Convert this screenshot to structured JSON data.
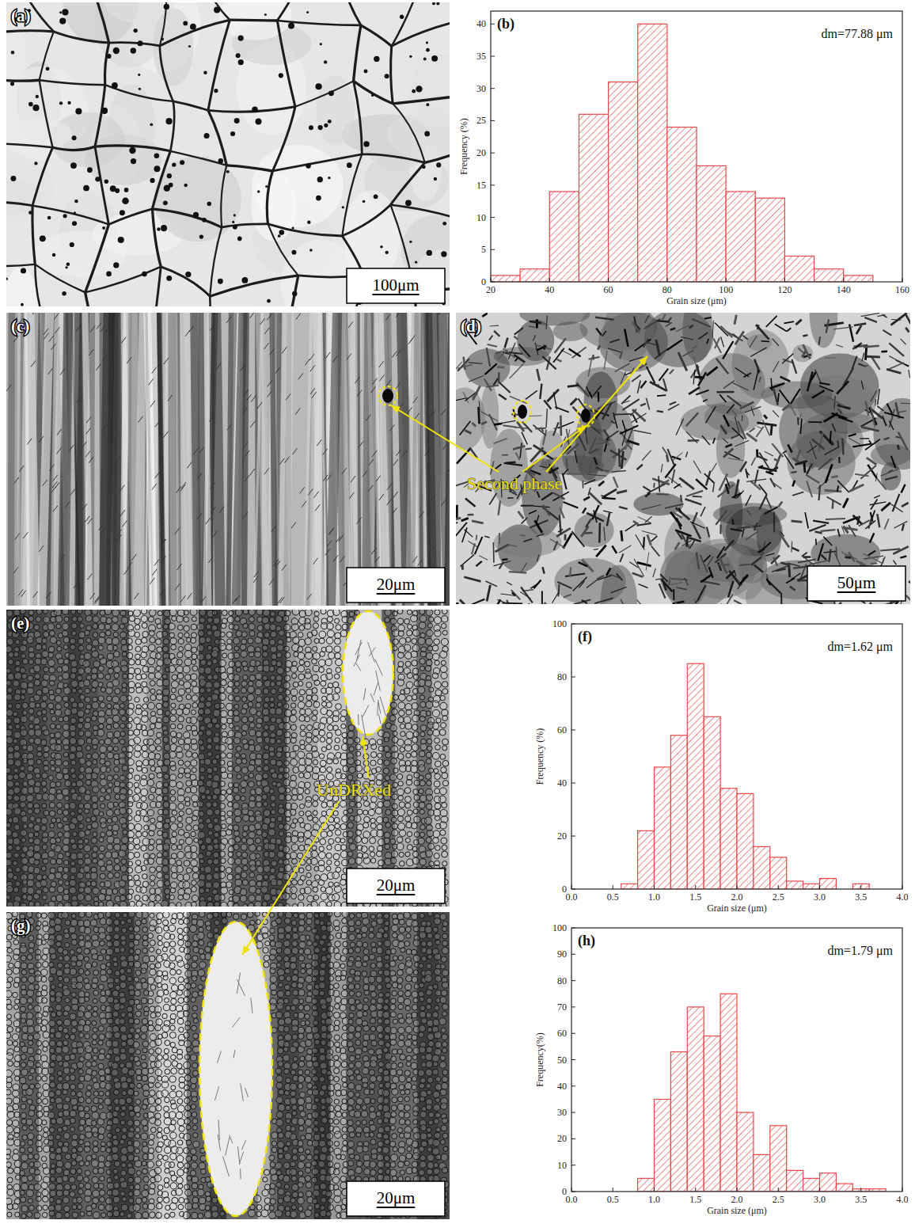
{
  "chart_data": [
    {
      "type": "histogram",
      "title": "(b)",
      "annotations": [
        "dm=77.88 μm"
      ],
      "x_label": "Grain size (μm)",
      "y_label": "Frequency (%)",
      "bins": [
        20,
        30,
        40,
        50,
        60,
        70,
        80,
        90,
        100,
        110,
        120,
        130,
        140,
        150
      ],
      "values": [
        1,
        2,
        14,
        26,
        31,
        40,
        24,
        18,
        14,
        13,
        4,
        2,
        1
      ],
      "color": "#e8474a",
      "xlim": [
        20,
        160
      ],
      "ylim": [
        0,
        42
      ],
      "xticks": [
        20,
        40,
        60,
        80,
        100,
        120,
        140,
        160
      ],
      "yticks": [
        0,
        5,
        10,
        15,
        20,
        25,
        30,
        35,
        40
      ]
    },
    {
      "type": "histogram",
      "title": "(f)",
      "annotations": [
        "dm=1.62 μm"
      ],
      "x_label": "Grain size (μm)",
      "y_label": "Frequency (%)",
      "bins": [
        0.6,
        0.8,
        1.0,
        1.2,
        1.4,
        1.6,
        1.8,
        2.0,
        2.2,
        2.4,
        2.6,
        2.8,
        3.0,
        3.2,
        3.4,
        3.6
      ],
      "values": [
        2,
        22,
        46,
        58,
        85,
        65,
        38,
        36,
        16,
        12,
        3,
        2,
        4,
        0,
        2
      ],
      "color": "#e8474a",
      "xlim": [
        0,
        4
      ],
      "ylim": [
        0,
        100
      ],
      "xticks": [
        {
          "value": 0,
          "label": "0.0"
        },
        0.5,
        {
          "value": 1,
          "label": "1.0"
        },
        1.5,
        {
          "value": 2,
          "label": "2.0"
        },
        2.5,
        {
          "value": 3,
          "label": "3.0"
        },
        3.5,
        {
          "value": 4,
          "label": "4.0"
        }
      ],
      "yticks": [
        0,
        20,
        40,
        60,
        80,
        100
      ]
    },
    {
      "type": "histogram",
      "title": "(h)",
      "annotations": [
        "dm=1.79 μm"
      ],
      "x_label": "Grain size (μm)",
      "y_label": "Frequency(%)",
      "bins": [
        0.8,
        1.0,
        1.2,
        1.4,
        1.6,
        1.8,
        2.0,
        2.2,
        2.4,
        2.6,
        2.8,
        3.0,
        3.2,
        3.4,
        3.6,
        3.8
      ],
      "values": [
        5,
        35,
        53,
        70,
        59,
        75,
        30,
        14,
        25,
        8,
        5,
        7,
        3,
        1,
        1
      ],
      "color": "#e8474a",
      "xlim": [
        0,
        4
      ],
      "ylim": [
        0,
        100
      ],
      "xticks": [
        {
          "value": 0,
          "label": "0.0"
        },
        0.5,
        {
          "value": 1,
          "label": "1.0"
        },
        1.5,
        {
          "value": 2,
          "label": "2.0"
        },
        2.5,
        {
          "value": 3,
          "label": "3.0"
        },
        3.5,
        {
          "value": 4,
          "label": "4.0"
        }
      ],
      "yticks": [
        0,
        10,
        20,
        30,
        40,
        50,
        60,
        70,
        80,
        90,
        100
      ]
    }
  ],
  "micrographs": [
    {
      "label": "(a)",
      "scale_bar": "100μm"
    },
    {
      "label": "(c)",
      "scale_bar": "20μm"
    },
    {
      "label": "(d)",
      "scale_bar": "50μm"
    },
    {
      "label": "(e)",
      "scale_bar": "20μm"
    },
    {
      "label": "(g)",
      "scale_bar": "20μm"
    }
  ],
  "callouts": [
    {
      "text": "Second phase"
    },
    {
      "text": "UnDRXed"
    }
  ]
}
